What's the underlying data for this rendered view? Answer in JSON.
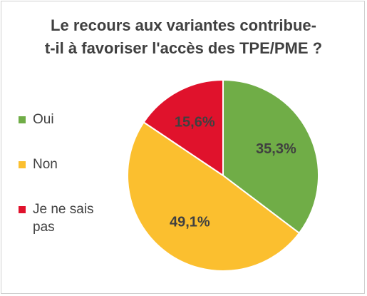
{
  "chart_data": {
    "type": "pie",
    "title_lines": [
      "Le recours aux variantes contribue-",
      "t-il à favoriser l'accès des TPE/PME ?"
    ],
    "slices": [
      {
        "label": "Oui",
        "value": 35.3,
        "display": "35,3%",
        "color": "#70ad47"
      },
      {
        "label": "Non",
        "value": 49.1,
        "display": "49,1%",
        "color": "#fbbf2f"
      },
      {
        "label": "Je ne sais pas",
        "value": 15.6,
        "display": "15,6%",
        "color": "#e0122c"
      }
    ],
    "legend_position": "left",
    "start_angle": "12 o'clock",
    "direction": "clockwise"
  }
}
